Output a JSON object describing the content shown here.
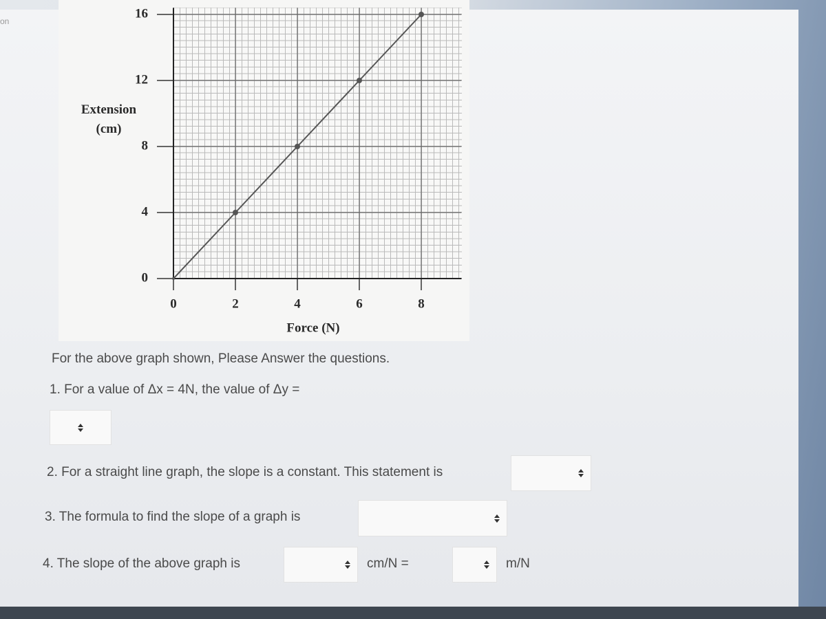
{
  "corner_text": "on",
  "chart_data": {
    "type": "line",
    "x_label": "Force (N)",
    "y_label": "Extension (cm)",
    "x": [
      0,
      2,
      4,
      6,
      8
    ],
    "values": [
      0,
      4,
      8,
      12,
      16
    ],
    "color": "#555555",
    "xlim": [
      0,
      9.3
    ],
    "ylim": [
      0,
      16.4
    ],
    "xticks": [
      0,
      2,
      4,
      6,
      8
    ],
    "yticks": [
      0,
      4,
      8,
      12,
      16
    ],
    "grid": true
  },
  "intro": "For the above graph shown, Please Answer the questions.",
  "questions": [
    {
      "text": "1. For a value of Δx = 4N, the value of Δy ="
    },
    {
      "text": "2. For a straight line graph, the slope is a constant. This statement is"
    },
    {
      "text": "3. The formula to find the slope of a graph is"
    },
    {
      "text": "4. The slope of the above graph is",
      "unit_1": "cm/N =",
      "unit_2": "m/N"
    }
  ]
}
